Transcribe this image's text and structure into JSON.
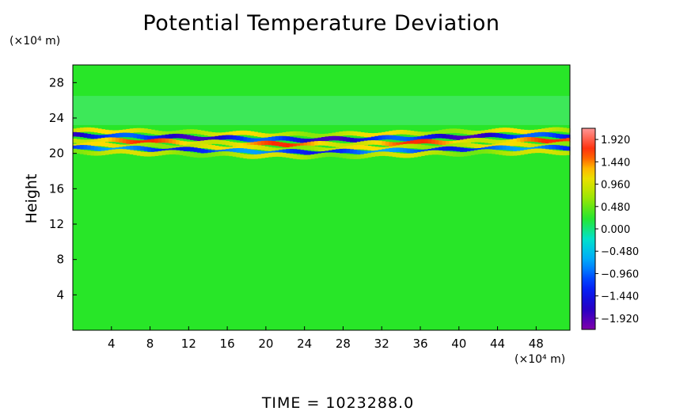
{
  "chart_data": {
    "type": "heatmap",
    "title": "Potential Temperature Deviation",
    "xlabel": "",
    "ylabel": "Height",
    "x_unit_label": "(×10⁴ m)",
    "y_unit_label": "(×10⁴ m)",
    "footer": "TIME = 1023288.0",
    "xlim": [
      0,
      51.5
    ],
    "ylim": [
      0,
      30
    ],
    "x_ticks": [
      "4",
      "8",
      "12",
      "16",
      "20",
      "24",
      "28",
      "32",
      "36",
      "40",
      "44",
      "48"
    ],
    "x_tick_values": [
      4,
      8,
      12,
      16,
      20,
      24,
      28,
      32,
      36,
      40,
      44,
      48
    ],
    "y_ticks": [
      "4",
      "8",
      "12",
      "16",
      "20",
      "24",
      "28"
    ],
    "y_tick_values": [
      4,
      8,
      12,
      16,
      20,
      24,
      28
    ],
    "colorbar": {
      "min": -2.16,
      "max": 2.16,
      "labels": [
        "1.920",
        "1.440",
        "0.960",
        "0.480",
        "0.000",
        "−0.480",
        "−0.960",
        "−1.440",
        "−1.920"
      ],
      "label_values": [
        1.92,
        1.44,
        0.96,
        0.48,
        0.0,
        -0.48,
        -0.96,
        -1.44,
        -1.92
      ]
    },
    "field_features": {
      "background_value": 0.24,
      "disturbed_layer_height_range": [
        19.5,
        23.5
      ],
      "bands": [
        {
          "height": 22.6,
          "value": 1.2
        },
        {
          "height": 22.05,
          "value": -1.9
        },
        {
          "height": 21.5,
          "value": 1.7
        },
        {
          "height": 21.0,
          "value": 1.2
        },
        {
          "height": 20.6,
          "value": -1.4
        },
        {
          "height": 20.2,
          "value": 1.0
        }
      ]
    }
  }
}
